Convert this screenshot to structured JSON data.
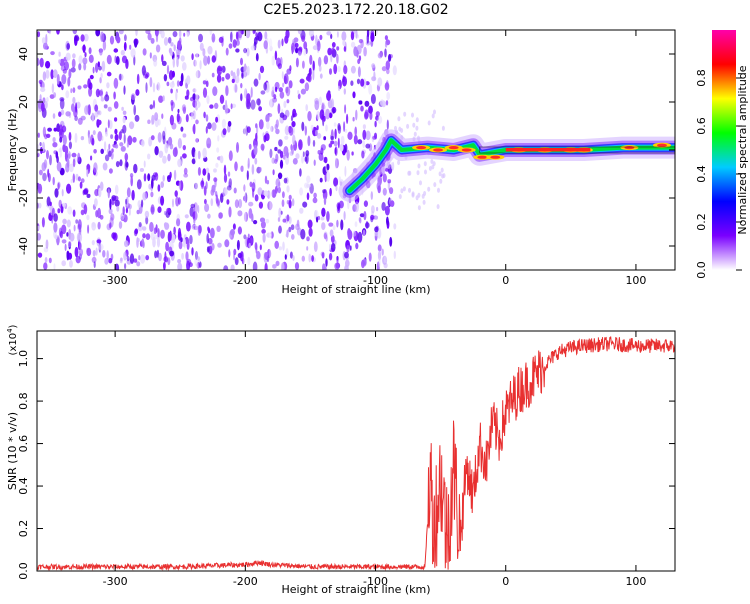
{
  "title": "C2E5.2023.172.20.18.G02",
  "chart_data": [
    {
      "type": "heatmap",
      "xlabel": "Height of straight line (km)",
      "ylabel": "Frequency (Hz)",
      "xlim": [
        -360,
        130
      ],
      "ylim": [
        -50,
        50
      ],
      "x_ticks": [
        -300,
        -200,
        -100,
        0,
        100
      ],
      "y_ticks": [
        -40,
        -20,
        0,
        20,
        40
      ],
      "noise_region_x": [
        -360,
        -85
      ],
      "ridge": [
        {
          "x": -120,
          "y": -17
        },
        {
          "x": -110,
          "y": -12
        },
        {
          "x": -100,
          "y": -6
        },
        {
          "x": -92,
          "y": 0
        },
        {
          "x": -88,
          "y": 4
        },
        {
          "x": -80,
          "y": 0
        },
        {
          "x": -60,
          "y": 1
        },
        {
          "x": -40,
          "y": 0
        },
        {
          "x": -25,
          "y": 2
        },
        {
          "x": -20,
          "y": -2
        },
        {
          "x": 0,
          "y": 0
        },
        {
          "x": 60,
          "y": 0
        },
        {
          "x": 90,
          "y": 1
        },
        {
          "x": 130,
          "y": 1
        }
      ],
      "colorbar": {
        "label": "Normalized spectral amplitude",
        "range": [
          0,
          1
        ],
        "ticks": [
          0.0,
          0.2,
          0.4,
          0.6,
          0.8
        ],
        "tick_labels": [
          "0.0",
          "0.2",
          "0.4",
          "0.6",
          "0.8"
        ],
        "colors": [
          "#ffffff",
          "#7a00ff",
          "#0000ff",
          "#00ccff",
          "#00ff00",
          "#ffff00",
          "#ff0000",
          "#ff00aa"
        ]
      }
    },
    {
      "type": "line",
      "xlabel": "Height of straight line (km)",
      "ylabel": "SNR (10 * v/v)",
      "scale_label": "(x10",
      "scale_exponent": "4",
      "scale_close": ")",
      "xlim": [
        -360,
        130
      ],
      "ylim": [
        0,
        1.13
      ],
      "x_ticks": [
        -300,
        -200,
        -100,
        0,
        100
      ],
      "y_ticks": [
        0.0,
        0.2,
        0.4,
        0.6,
        0.8,
        1.0
      ],
      "y_tick_labels": [
        "0.0",
        "0.2",
        "0.4",
        "0.6",
        "0.8",
        "1.0"
      ],
      "series_color": "#e83030",
      "series": [
        {
          "x": [
            -360,
            -300,
            -250,
            -200,
            -190,
            -180,
            -150,
            -100,
            -62,
            -58,
            -55,
            -50,
            -45,
            -40,
            -35,
            -30,
            -25,
            -20,
            -15,
            -10,
            -5,
            0,
            10,
            20,
            30,
            40,
            50,
            60,
            80,
            100,
            130
          ],
          "y": [
            0.02,
            0.02,
            0.02,
            0.03,
            0.04,
            0.03,
            0.02,
            0.02,
            0.02,
            0.45,
            0.2,
            0.45,
            0.15,
            0.5,
            0.15,
            0.5,
            0.35,
            0.6,
            0.5,
            0.7,
            0.62,
            0.75,
            0.85,
            0.9,
            0.97,
            1.03,
            1.05,
            1.06,
            1.07,
            1.06,
            1.06
          ]
        }
      ]
    }
  ]
}
